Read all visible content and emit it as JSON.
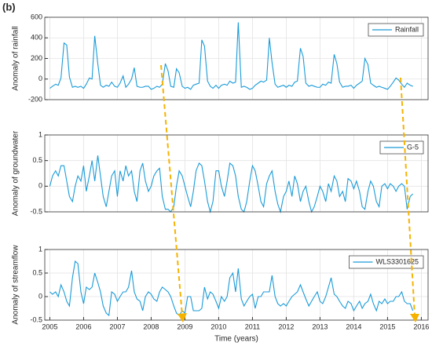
{
  "panel_label": "(b)",
  "chart_data": [
    {
      "type": "line",
      "ylabel": "Anomaly of rainfall",
      "legend": "upper right",
      "grid": true,
      "xlim": [
        2004.85,
        2016.2
      ],
      "ylim": [
        -200,
        600
      ],
      "yticks": [
        600,
        400,
        200,
        0,
        -200
      ],
      "x": [
        2005,
        2005.08,
        2005.17,
        2005.25,
        2005.33,
        2005.42,
        2005.5,
        2005.58,
        2005.67,
        2005.75,
        2005.83,
        2005.92,
        2006,
        2006.08,
        2006.17,
        2006.25,
        2006.33,
        2006.42,
        2006.5,
        2006.58,
        2006.67,
        2006.75,
        2006.83,
        2006.92,
        2007,
        2007.08,
        2007.17,
        2007.25,
        2007.33,
        2007.42,
        2007.5,
        2007.58,
        2007.67,
        2007.75,
        2007.83,
        2007.92,
        2008,
        2008.08,
        2008.17,
        2008.25,
        2008.33,
        2008.42,
        2008.5,
        2008.58,
        2008.67,
        2008.75,
        2008.83,
        2008.92,
        2009,
        2009.08,
        2009.17,
        2009.25,
        2009.33,
        2009.42,
        2009.5,
        2009.58,
        2009.67,
        2009.75,
        2009.83,
        2009.92,
        2010,
        2010.08,
        2010.17,
        2010.25,
        2010.33,
        2010.42,
        2010.5,
        2010.58,
        2010.67,
        2010.75,
        2010.83,
        2010.92,
        2011,
        2011.08,
        2011.17,
        2011.25,
        2011.33,
        2011.42,
        2011.5,
        2011.58,
        2011.67,
        2011.75,
        2011.83,
        2011.92,
        2012,
        2012.08,
        2012.17,
        2012.25,
        2012.33,
        2012.42,
        2012.5,
        2012.58,
        2012.67,
        2012.75,
        2012.83,
        2012.92,
        2013,
        2013.08,
        2013.17,
        2013.25,
        2013.33,
        2013.42,
        2013.5,
        2013.58,
        2013.67,
        2013.75,
        2013.83,
        2013.92,
        2014,
        2014.08,
        2014.17,
        2014.25,
        2014.33,
        2014.42,
        2014.5,
        2014.58,
        2014.67,
        2014.75,
        2014.83,
        2014.92,
        2015,
        2015.08,
        2015.17,
        2015.25,
        2015.33,
        2015.42,
        2015.5,
        2015.58,
        2015.67,
        2015.75
      ],
      "series": [
        {
          "name": "Rainfall",
          "color": "#1a9bd8",
          "values": [
            -90,
            -70,
            -50,
            -60,
            10,
            350,
            330,
            20,
            -80,
            -70,
            -80,
            -70,
            -90,
            -50,
            10,
            0,
            420,
            150,
            -60,
            -80,
            -60,
            -70,
            -30,
            -70,
            -80,
            -40,
            30,
            -80,
            -50,
            0,
            110,
            -70,
            -80,
            -80,
            -70,
            -70,
            -100,
            -90,
            -70,
            -80,
            -50,
            150,
            80,
            -70,
            -80,
            100,
            60,
            -70,
            -90,
            -80,
            -100,
            -60,
            -50,
            -40,
            380,
            320,
            -20,
            -70,
            -90,
            -60,
            -90,
            -60,
            -50,
            -60,
            -20,
            -40,
            -30,
            550,
            -80,
            -70,
            -80,
            -100,
            -90,
            -60,
            -40,
            -20,
            -30,
            -10,
            400,
            160,
            -50,
            -80,
            -70,
            -60,
            -80,
            -60,
            -70,
            -30,
            -20,
            300,
            220,
            -40,
            -70,
            -60,
            -70,
            -80,
            -80,
            -50,
            -60,
            -30,
            -40,
            240,
            150,
            -30,
            -80,
            -70,
            -70,
            -60,
            -90,
            -60,
            -40,
            -20,
            200,
            140,
            -40,
            -60,
            -80,
            -70,
            -80,
            -90,
            -100,
            -70,
            -30,
            10,
            -10,
            -50,
            -80,
            -40,
            -60,
            -70
          ]
        }
      ]
    },
    {
      "type": "line",
      "ylabel": "Anomaly of groundwater",
      "legend": "upper right",
      "grid": true,
      "xlim": [
        2004.85,
        2016.2
      ],
      "ylim": [
        -0.5,
        1
      ],
      "yticks": [
        1,
        0.5,
        0,
        -0.5
      ],
      "x": [
        2005,
        2005.08,
        2005.17,
        2005.25,
        2005.33,
        2005.42,
        2005.5,
        2005.58,
        2005.67,
        2005.75,
        2005.83,
        2005.92,
        2006,
        2006.08,
        2006.17,
        2006.25,
        2006.33,
        2006.42,
        2006.5,
        2006.58,
        2006.67,
        2006.75,
        2006.83,
        2006.92,
        2007,
        2007.08,
        2007.17,
        2007.25,
        2007.33,
        2007.42,
        2007.5,
        2007.58,
        2007.67,
        2007.75,
        2007.83,
        2007.92,
        2008,
        2008.08,
        2008.17,
        2008.25,
        2008.33,
        2008.42,
        2008.5,
        2008.58,
        2008.67,
        2008.75,
        2008.83,
        2008.92,
        2009,
        2009.08,
        2009.17,
        2009.25,
        2009.33,
        2009.42,
        2009.5,
        2009.58,
        2009.67,
        2009.75,
        2009.83,
        2009.92,
        2010,
        2010.08,
        2010.17,
        2010.25,
        2010.33,
        2010.42,
        2010.5,
        2010.58,
        2010.67,
        2010.75,
        2010.83,
        2010.92,
        2011,
        2011.08,
        2011.17,
        2011.25,
        2011.33,
        2011.42,
        2011.5,
        2011.58,
        2011.67,
        2011.75,
        2011.83,
        2011.92,
        2012,
        2012.08,
        2012.17,
        2012.25,
        2012.33,
        2012.42,
        2012.5,
        2012.58,
        2012.67,
        2012.75,
        2012.83,
        2012.92,
        2013,
        2013.08,
        2013.17,
        2013.25,
        2013.33,
        2013.42,
        2013.5,
        2013.58,
        2013.67,
        2013.75,
        2013.83,
        2013.92,
        2014,
        2014.08,
        2014.17,
        2014.25,
        2014.33,
        2014.42,
        2014.5,
        2014.58,
        2014.67,
        2014.75,
        2014.83,
        2014.92,
        2015,
        2015.08,
        2015.17,
        2015.25,
        2015.33,
        2015.42,
        2015.5,
        2015.58,
        2015.67,
        2015.75
      ],
      "series": [
        {
          "name": "G-5",
          "color": "#1a9bd8",
          "values": [
            0,
            0.2,
            0.3,
            0.2,
            0.4,
            0.4,
            0.1,
            -0.2,
            -0.3,
            0,
            0.2,
            0.1,
            0.4,
            -0.1,
            0.2,
            0.5,
            0.1,
            0.6,
            0.2,
            -0.2,
            -0.4,
            -0.1,
            0.2,
            0.3,
            -0.2,
            0.3,
            0.1,
            0.4,
            0.2,
            0.3,
            -0.1,
            -0.3,
            0.3,
            0.45,
            0.1,
            -0.1,
            0,
            0.2,
            0.3,
            0.35,
            -0.2,
            -0.45,
            -0.45,
            -0.5,
            -0.4,
            0,
            0.3,
            0.2,
            0,
            -0.2,
            -0.4,
            -0.1,
            0.3,
            0.45,
            0.4,
            0.1,
            -0.3,
            -0.5,
            -0.3,
            0.3,
            0.3,
            0,
            -0.2,
            0.1,
            0.45,
            0.4,
            0.2,
            -0.2,
            -0.45,
            -0.5,
            -0.3,
            0.1,
            0.4,
            0.3,
            0,
            -0.3,
            -0.4,
            0.05,
            0.2,
            0.3,
            -0.1,
            -0.35,
            -0.5,
            -0.2,
            -0.1,
            0.1,
            -0.2,
            0.2,
            0.05,
            -0.3,
            -0.1,
            0,
            -0.3,
            -0.5,
            -0.4,
            -0.2,
            0,
            -0.1,
            -0.3,
            0.05,
            -0.1,
            0.2,
            0.1,
            -0.2,
            -0.1,
            -0.3,
            0.15,
            0.1,
            -0.05,
            0.1,
            -0.1,
            -0.4,
            -0.45,
            -0.1,
            0.1,
            0,
            -0.3,
            -0.4,
            0,
            0.05,
            -0.05,
            0.05,
            0,
            -0.1,
            0,
            0.05,
            0,
            -0.45,
            -0.2,
            -0.15
          ]
        }
      ]
    },
    {
      "type": "line",
      "ylabel": "Anomaly of streamflow",
      "xlabel": "Time (years)",
      "legend": "upper right",
      "grid": true,
      "xlim": [
        2004.85,
        2016.2
      ],
      "ylim": [
        -0.5,
        1
      ],
      "yticks": [
        1,
        0.5,
        0,
        -0.5
      ],
      "xticks": [
        2005,
        2006,
        2007,
        2008,
        2009,
        2010,
        2011,
        2012,
        2013,
        2014,
        2015,
        2016
      ],
      "x": [
        2005,
        2005.08,
        2005.17,
        2005.25,
        2005.33,
        2005.42,
        2005.5,
        2005.58,
        2005.67,
        2005.75,
        2005.83,
        2005.92,
        2006,
        2006.08,
        2006.17,
        2006.25,
        2006.33,
        2006.42,
        2006.5,
        2006.58,
        2006.67,
        2006.75,
        2006.83,
        2006.92,
        2007,
        2007.08,
        2007.17,
        2007.25,
        2007.33,
        2007.42,
        2007.5,
        2007.58,
        2007.67,
        2007.75,
        2007.83,
        2007.92,
        2008,
        2008.08,
        2008.17,
        2008.25,
        2008.33,
        2008.42,
        2008.5,
        2008.58,
        2008.67,
        2008.75,
        2008.83,
        2008.92,
        2009,
        2009.08,
        2009.17,
        2009.25,
        2009.33,
        2009.42,
        2009.5,
        2009.58,
        2009.67,
        2009.75,
        2009.83,
        2009.92,
        2010,
        2010.08,
        2010.17,
        2010.25,
        2010.33,
        2010.42,
        2010.5,
        2010.58,
        2010.67,
        2010.75,
        2010.83,
        2010.92,
        2011,
        2011.08,
        2011.17,
        2011.25,
        2011.33,
        2011.42,
        2011.5,
        2011.58,
        2011.67,
        2011.75,
        2011.83,
        2011.92,
        2012,
        2012.08,
        2012.17,
        2012.25,
        2012.33,
        2012.42,
        2012.5,
        2012.58,
        2012.67,
        2012.75,
        2012.83,
        2012.92,
        2013,
        2013.08,
        2013.17,
        2013.25,
        2013.33,
        2013.42,
        2013.5,
        2013.58,
        2013.67,
        2013.75,
        2013.83,
        2013.92,
        2014,
        2014.08,
        2014.17,
        2014.25,
        2014.33,
        2014.42,
        2014.5,
        2014.58,
        2014.67,
        2014.75,
        2014.83,
        2014.92,
        2015,
        2015.08,
        2015.17,
        2015.25,
        2015.33,
        2015.42,
        2015.5,
        2015.58,
        2015.67,
        2015.75
      ],
      "series": [
        {
          "name": "WLS3301625",
          "color": "#1a9bd8",
          "values": [
            0.1,
            0.05,
            0.1,
            0,
            0.25,
            0.1,
            -0.1,
            -0.2,
            0.4,
            0.75,
            0.7,
            0.1,
            -0.15,
            0.2,
            0.15,
            0.2,
            0.5,
            0.3,
            0.1,
            -0.2,
            -0.35,
            -0.4,
            0.1,
            0.05,
            -0.1,
            0,
            0.1,
            0.1,
            0.2,
            0.55,
            0.1,
            -0.05,
            -0.1,
            -0.3,
            0,
            0.1,
            0.05,
            -0.05,
            -0.1,
            0.1,
            0.2,
            0.15,
            0.1,
            0,
            -0.2,
            -0.35,
            -0.4,
            -0.3,
            -0.35,
            0,
            0,
            -0.3,
            -0.3,
            -0.3,
            -0.25,
            0.2,
            -0.05,
            0.1,
            0.05,
            -0.1,
            -0.25,
            0,
            -0.1,
            0,
            0.4,
            0.5,
            0.1,
            0.6,
            -0.05,
            -0.2,
            -0.1,
            0,
            0.05,
            -0.25,
            0,
            0,
            0.1,
            0.1,
            0.1,
            0.45,
            0,
            -0.15,
            -0.2,
            -0.15,
            -0.2,
            -0.1,
            0,
            0.05,
            0.1,
            0.25,
            0.1,
            -0.05,
            -0.2,
            -0.1,
            0,
            0.1,
            -0.1,
            -0.15,
            0,
            0.2,
            0.4,
            0.05,
            0,
            -0.1,
            -0.2,
            -0.25,
            -0.1,
            -0.15,
            -0.3,
            -0.2,
            -0.1,
            -0.25,
            -0.15,
            -0.1,
            0.05,
            -0.15,
            -0.3,
            -0.1,
            -0.15,
            -0.05,
            -0.15,
            -0.1,
            -0.1,
            0,
            0,
            0.1,
            -0.1,
            -0.15,
            -0.15,
            -0.3
          ]
        }
      ]
    }
  ]
}
